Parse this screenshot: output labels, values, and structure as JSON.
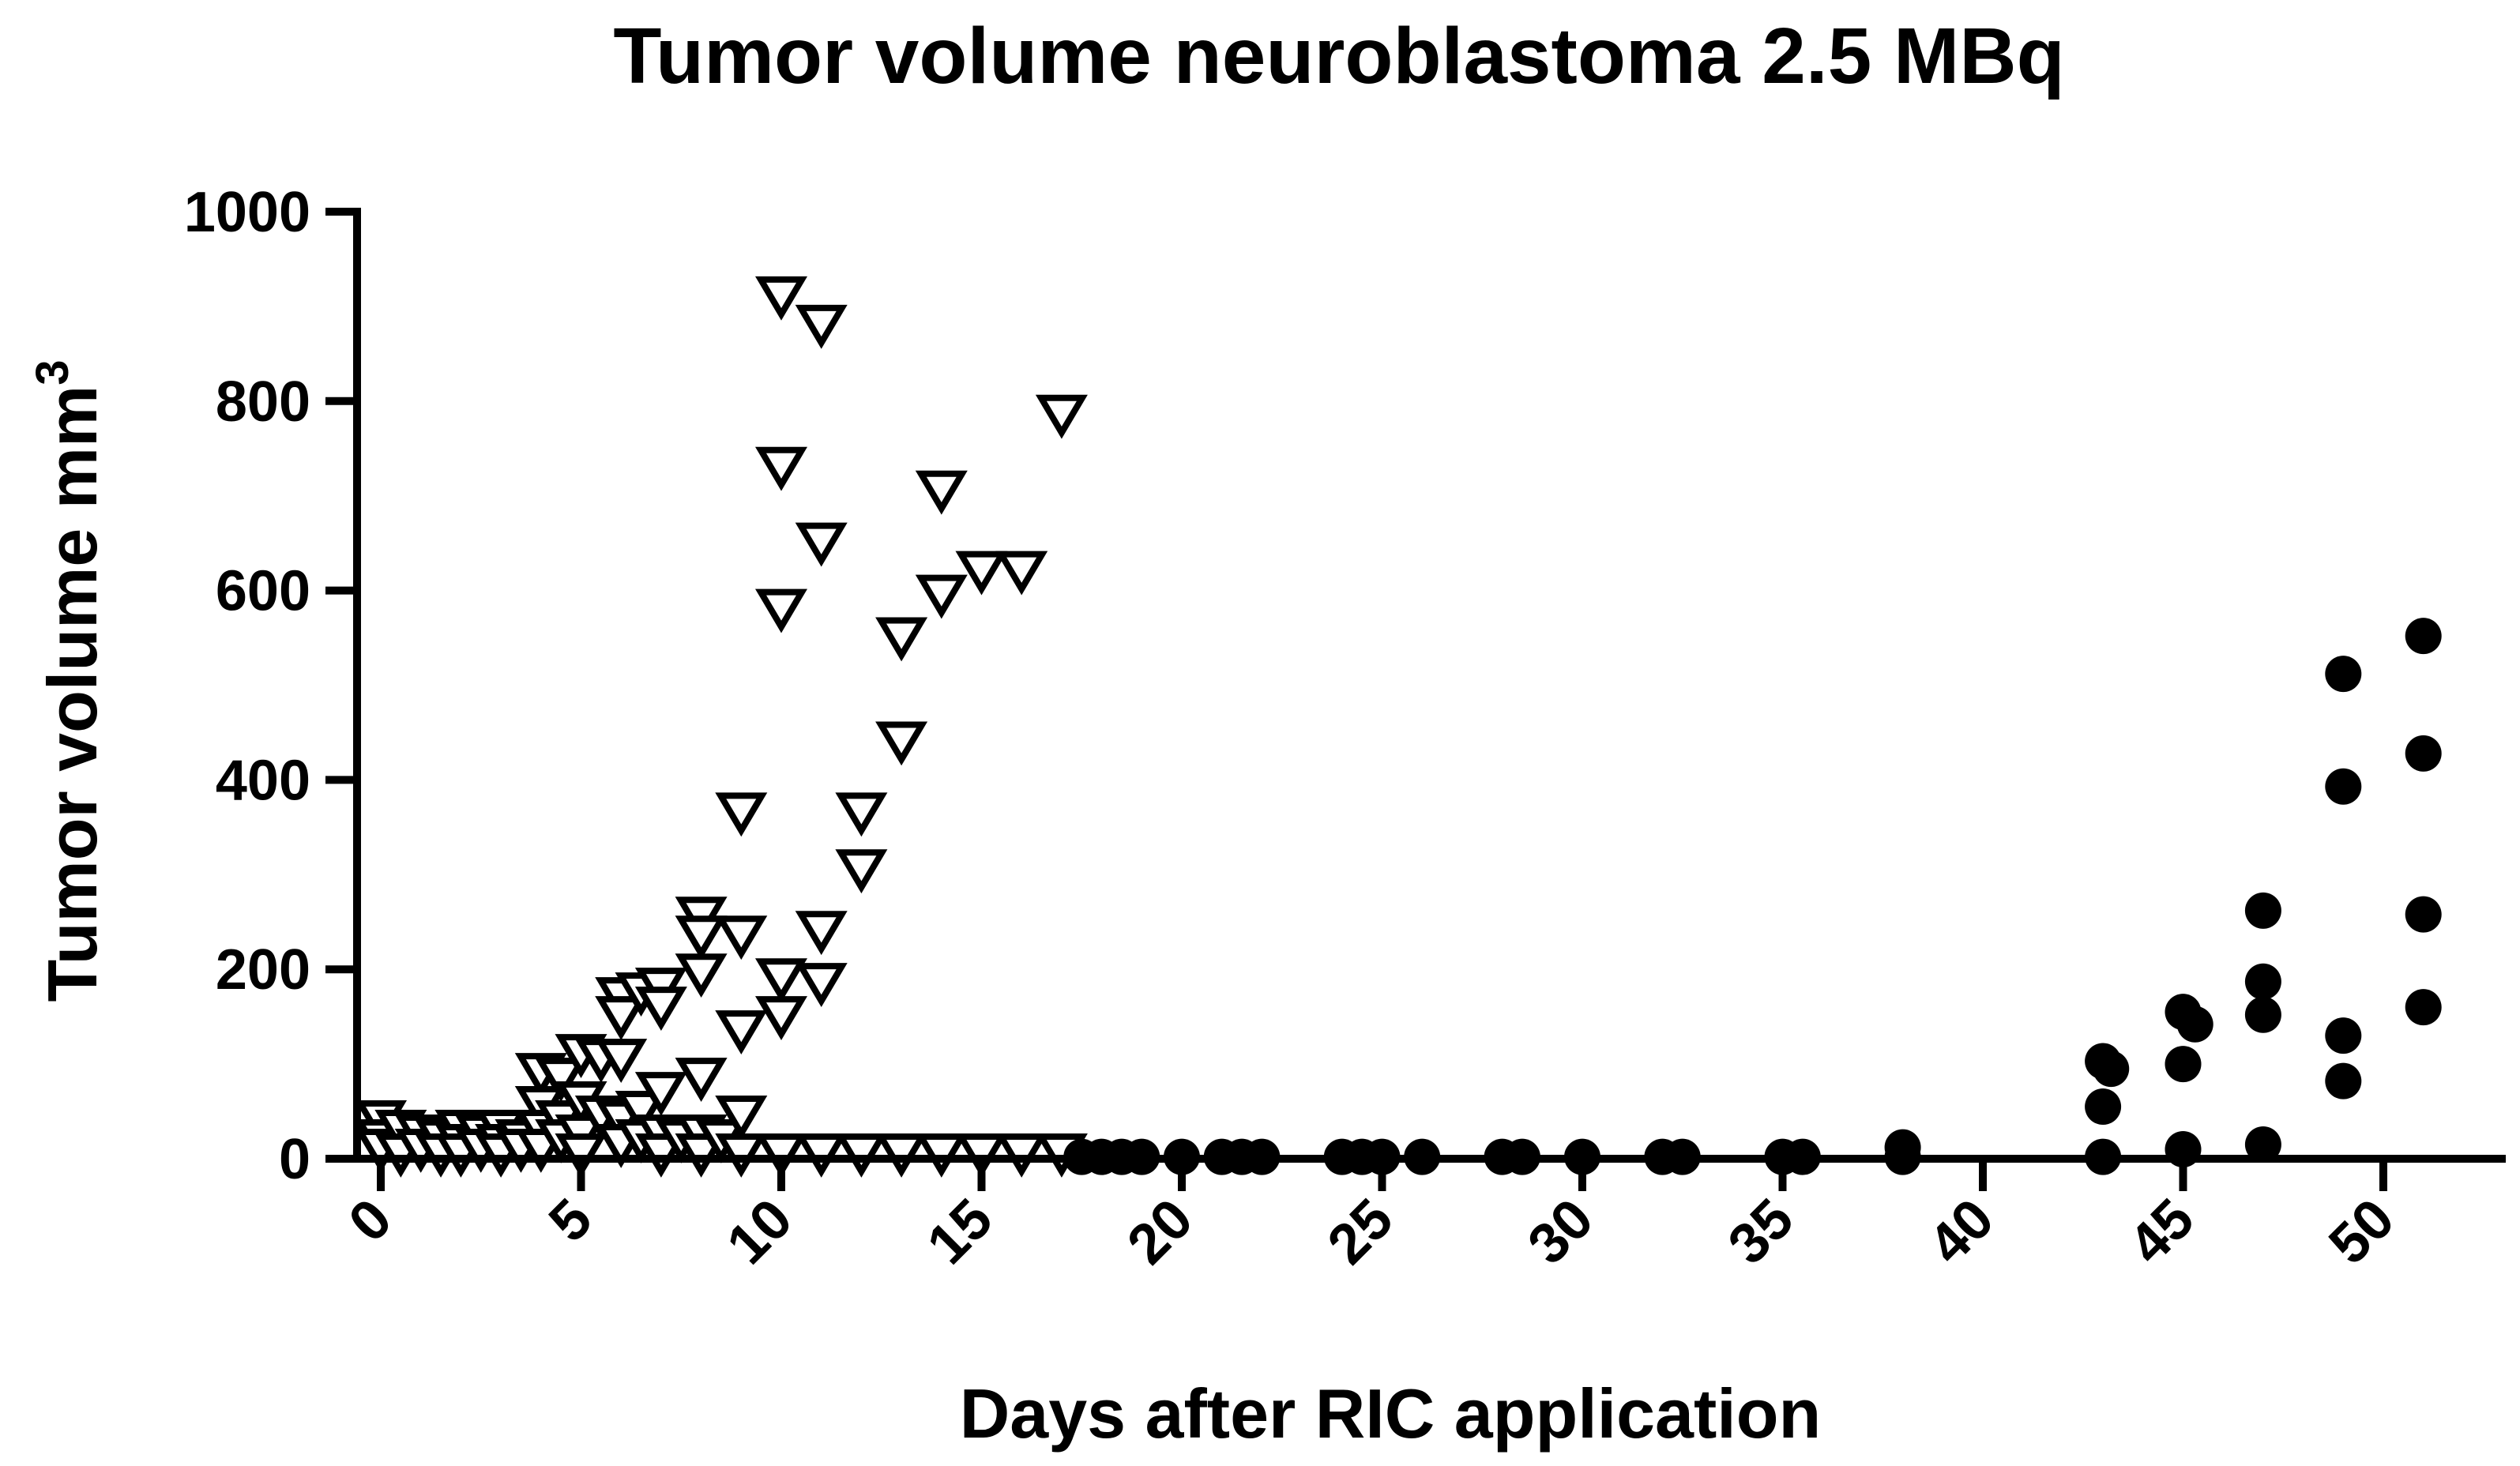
{
  "chart_data": {
    "type": "scatter",
    "title": "Tumor volume neuroblastoma 2.5 MBq",
    "xlabel": "Days after RIC application",
    "ylabel_main": "Tumor volume mm",
    "ylabel_sup": "3",
    "xlim": [
      -1,
      53
    ],
    "ylim": [
      0,
      1000
    ],
    "x_ticks": [
      0,
      5,
      10,
      15,
      20,
      25,
      30,
      35,
      40,
      45,
      50
    ],
    "y_ticks": [
      0,
      200,
      400,
      600,
      800,
      1000
    ],
    "grid": false,
    "legend": "none",
    "series": [
      {
        "marker": "open-triangle-down",
        "points": [
          [
            0,
            40
          ],
          [
            0,
            20
          ],
          [
            0,
            10
          ],
          [
            0.5,
            30
          ],
          [
            0.5,
            5
          ],
          [
            1,
            25
          ],
          [
            1,
            10
          ],
          [
            1.5,
            20
          ],
          [
            1.5,
            5
          ],
          [
            2,
            30
          ],
          [
            2,
            15
          ],
          [
            2,
            5
          ],
          [
            2.5,
            25
          ],
          [
            2.5,
            10
          ],
          [
            3,
            30
          ],
          [
            3,
            15
          ],
          [
            3,
            5
          ],
          [
            3.5,
            20
          ],
          [
            3.5,
            10
          ],
          [
            4,
            90
          ],
          [
            4,
            55
          ],
          [
            4,
            30
          ],
          [
            4,
            10
          ],
          [
            4.5,
            85
          ],
          [
            4.5,
            40
          ],
          [
            4.5,
            20
          ],
          [
            5,
            110
          ],
          [
            5,
            60
          ],
          [
            5,
            25
          ],
          [
            5,
            5
          ],
          [
            5.5,
            105
          ],
          [
            5.5,
            45
          ],
          [
            6,
            170
          ],
          [
            6,
            150
          ],
          [
            6,
            105
          ],
          [
            6,
            40
          ],
          [
            6,
            15
          ],
          [
            6.5,
            175
          ],
          [
            6.5,
            50
          ],
          [
            6.5,
            20
          ],
          [
            7,
            180
          ],
          [
            7,
            160
          ],
          [
            7,
            70
          ],
          [
            7,
            25
          ],
          [
            7,
            5
          ],
          [
            7.5,
            20
          ],
          [
            8,
            255
          ],
          [
            8,
            235
          ],
          [
            8,
            195
          ],
          [
            8,
            85
          ],
          [
            8,
            25
          ],
          [
            8,
            5
          ],
          [
            8.5,
            20
          ],
          [
            9,
            365
          ],
          [
            9,
            235
          ],
          [
            9,
            135
          ],
          [
            9,
            45
          ],
          [
            9,
            5
          ],
          [
            10,
            910
          ],
          [
            10,
            730
          ],
          [
            10,
            580
          ],
          [
            10,
            190
          ],
          [
            10,
            150
          ],
          [
            10,
            5
          ],
          [
            11,
            880
          ],
          [
            11,
            650
          ],
          [
            11,
            240
          ],
          [
            11,
            185
          ],
          [
            11,
            5
          ],
          [
            12,
            365
          ],
          [
            12,
            305
          ],
          [
            12,
            5
          ],
          [
            13,
            550
          ],
          [
            13,
            440
          ],
          [
            13,
            5
          ],
          [
            14,
            705
          ],
          [
            14,
            595
          ],
          [
            14,
            5
          ],
          [
            15,
            620
          ],
          [
            15,
            5
          ],
          [
            16,
            620
          ],
          [
            16,
            5
          ],
          [
            17,
            785
          ],
          [
            17,
            5
          ]
        ]
      },
      {
        "marker": "filled-circle",
        "points": [
          [
            17.5,
            2
          ],
          [
            18,
            2
          ],
          [
            18.5,
            2
          ],
          [
            19,
            2
          ],
          [
            20,
            2
          ],
          [
            21,
            2
          ],
          [
            21.5,
            2
          ],
          [
            22,
            2
          ],
          [
            24,
            2
          ],
          [
            24.5,
            2
          ],
          [
            25,
            2
          ],
          [
            26,
            2
          ],
          [
            28,
            2
          ],
          [
            28.5,
            2
          ],
          [
            30,
            2
          ],
          [
            32,
            2
          ],
          [
            32.5,
            2
          ],
          [
            35,
            2
          ],
          [
            35.5,
            2
          ],
          [
            38,
            12
          ],
          [
            38,
            2
          ],
          [
            43,
            103
          ],
          [
            43.2,
            95
          ],
          [
            43,
            55
          ],
          [
            43,
            2
          ],
          [
            45,
            155
          ],
          [
            45.3,
            142
          ],
          [
            45,
            100
          ],
          [
            45,
            10
          ],
          [
            47,
            262
          ],
          [
            47,
            187
          ],
          [
            47,
            152
          ],
          [
            47,
            15
          ],
          [
            49,
            512
          ],
          [
            49,
            393
          ],
          [
            49,
            130
          ],
          [
            49,
            82
          ],
          [
            51,
            552
          ],
          [
            51,
            428
          ],
          [
            51,
            258
          ],
          [
            51,
            160
          ]
        ]
      }
    ]
  }
}
